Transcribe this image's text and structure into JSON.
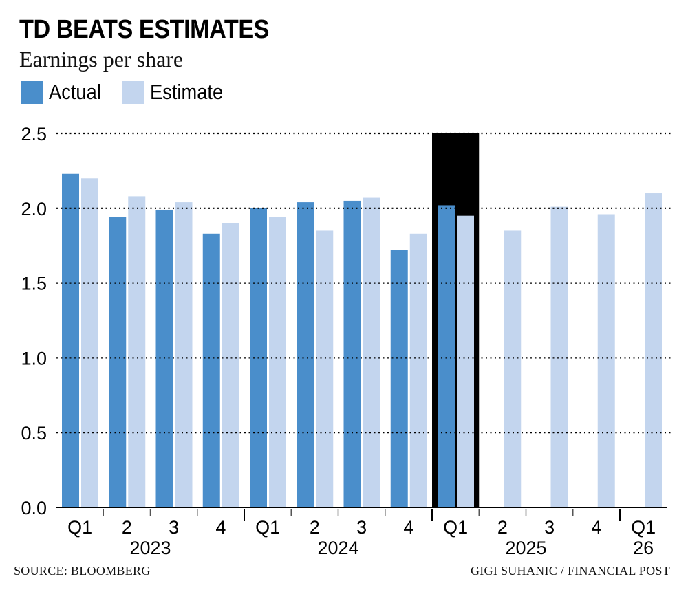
{
  "title": "TD BEATS ESTIMATES",
  "subtitle": "Earnings per share",
  "legend": [
    {
      "label": "Actual",
      "color": "#4a8ecb"
    },
    {
      "label": "Estimate",
      "color": "#c3d5ee"
    }
  ],
  "source": "SOURCE: BLOOMBERG",
  "credit": "GIGI SUHANIC / FINANCIAL POST",
  "chart_data": {
    "type": "bar",
    "title": "TD BEATS ESTIMATES",
    "subtitle": "Earnings per share",
    "xlabel": "",
    "ylabel": "",
    "ylim": [
      0,
      2.5
    ],
    "yticks": [
      "0.0",
      "0.5",
      "1.0",
      "1.5",
      "2.0",
      "2.5"
    ],
    "grid": "dotted horizontal",
    "legend_position": "top-left",
    "categories": [
      "Q1",
      "2",
      "3",
      "4",
      "Q1",
      "2",
      "3",
      "4",
      "Q1",
      "2",
      "3",
      "4",
      "Q1"
    ],
    "year_groups": [
      {
        "label": "2023",
        "start": 0,
        "end": 3
      },
      {
        "label": "2024",
        "start": 4,
        "end": 7
      },
      {
        "label": "2025",
        "start": 8,
        "end": 11
      },
      {
        "label": "26",
        "start": 12,
        "end": 12
      }
    ],
    "highlight_category_index": 8,
    "series": [
      {
        "name": "Actual",
        "color": "#4a8ecb",
        "values": [
          2.23,
          1.94,
          1.99,
          1.83,
          2.0,
          2.04,
          2.05,
          1.72,
          2.02,
          null,
          null,
          null,
          null
        ]
      },
      {
        "name": "Estimate",
        "color": "#c3d5ee",
        "values": [
          2.2,
          2.08,
          2.04,
          1.9,
          1.94,
          1.85,
          2.07,
          1.83,
          1.95,
          1.85,
          2.01,
          1.96,
          2.1
        ]
      }
    ]
  }
}
